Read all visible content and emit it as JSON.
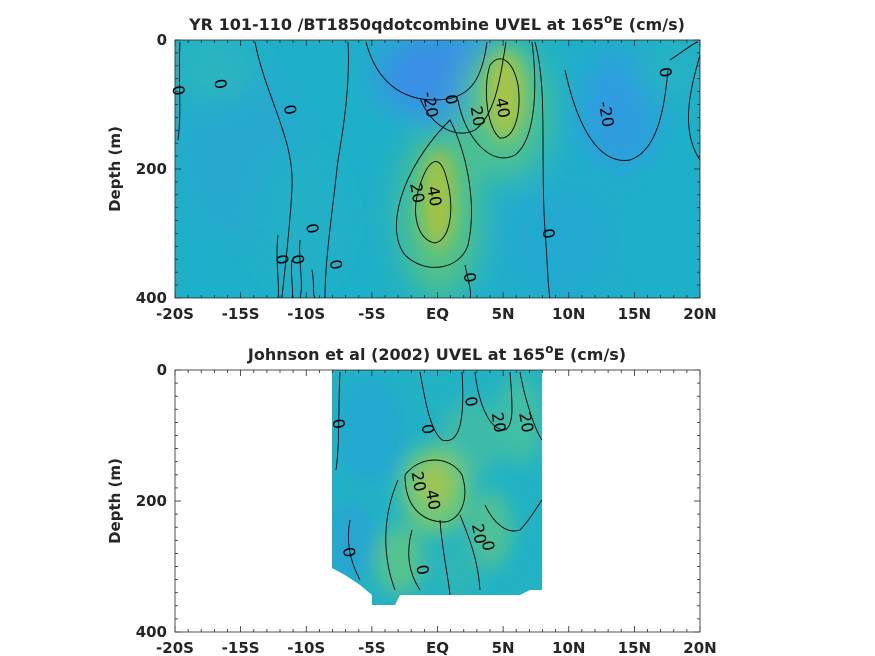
{
  "chart_data": [
    {
      "type": "heatmap",
      "title": "YR 101-110 /BT1850qdotcombine UVEL at 165",
      "title_superscript": "o",
      "title_suffix": "E (cm/s)",
      "xlabel": "",
      "ylabel": "Depth (m)",
      "x_ticks": [
        "-20S",
        "-15S",
        "-10S",
        "-5S",
        "EQ",
        "5N",
        "10N",
        "15N",
        "20N"
      ],
      "x_tick_values": [
        -20,
        -15,
        -10,
        -5,
        0,
        5,
        10,
        15,
        20
      ],
      "y_ticks": [
        "0",
        "200",
        "400"
      ],
      "y_tick_values": [
        0,
        200,
        400
      ],
      "xlim": [
        -20,
        20
      ],
      "ylim": [
        400,
        0
      ],
      "y_reversed": true,
      "data_extent_x": [
        -20,
        20
      ],
      "data_extent_y": [
        0,
        395
      ],
      "colormap": "parula",
      "contour_levels": [
        -20,
        0,
        20,
        40
      ],
      "contour_labels": [
        {
          "text": "0",
          "x": -19.7,
          "y": 78
        },
        {
          "text": "0",
          "x": -16.5,
          "y": 68
        },
        {
          "text": "0",
          "x": -11.2,
          "y": 108
        },
        {
          "text": "-20",
          "x": -0.5,
          "y": 100
        },
        {
          "text": "0",
          "x": 1.1,
          "y": 92
        },
        {
          "text": "20",
          "x": 3.1,
          "y": 118
        },
        {
          "text": "40",
          "x": 5.0,
          "y": 105
        },
        {
          "text": "-20",
          "x": 12.9,
          "y": 115
        },
        {
          "text": "0",
          "x": 17.4,
          "y": 50
        },
        {
          "text": "20",
          "x": -1.5,
          "y": 237
        },
        {
          "text": "40",
          "x": -0.2,
          "y": 242
        },
        {
          "text": "0",
          "x": -9.5,
          "y": 292
        },
        {
          "text": "0",
          "x": -11.8,
          "y": 340
        },
        {
          "text": "0",
          "x": -10.6,
          "y": 340
        },
        {
          "text": "0",
          "x": -7.7,
          "y": 348
        },
        {
          "text": "0",
          "x": 8.5,
          "y": 300
        },
        {
          "text": "0",
          "x": 2.5,
          "y": 368
        }
      ]
    },
    {
      "type": "heatmap",
      "title": "Johnson et al (2002) UVEL at 165",
      "title_superscript": "o",
      "title_suffix": "E (cm/s)",
      "xlabel": "",
      "ylabel": "Depth (m)",
      "x_ticks": [
        "-20S",
        "-15S",
        "-10S",
        "-5S",
        "EQ",
        "5N",
        "10N",
        "15N",
        "20N"
      ],
      "x_tick_values": [
        -20,
        -15,
        -10,
        -5,
        0,
        5,
        10,
        15,
        20
      ],
      "y_ticks": [
        "0",
        "200",
        "400"
      ],
      "y_tick_values": [
        0,
        200,
        400
      ],
      "xlim": [
        -20,
        20
      ],
      "ylim": [
        400,
        0
      ],
      "y_reversed": true,
      "data_extent_x": [
        -8,
        8
      ],
      "data_extent_y": [
        0,
        360
      ],
      "colormap": "parula",
      "contour_levels": [
        0,
        20,
        40
      ],
      "contour_labels": [
        {
          "text": "0",
          "x": -7.5,
          "y": 82
        },
        {
          "text": "0",
          "x": -0.7,
          "y": 90
        },
        {
          "text": "0",
          "x": 2.6,
          "y": 48
        },
        {
          "text": "20",
          "x": 4.7,
          "y": 80
        },
        {
          "text": "20",
          "x": 6.8,
          "y": 80
        },
        {
          "text": "20",
          "x": -1.4,
          "y": 170
        },
        {
          "text": "40",
          "x": -0.3,
          "y": 198
        },
        {
          "text": "20",
          "x": 3.2,
          "y": 250
        },
        {
          "text": "0",
          "x": 3.9,
          "y": 268
        },
        {
          "text": "0",
          "x": -6.7,
          "y": 278
        },
        {
          "text": "0",
          "x": -1.1,
          "y": 305
        }
      ]
    }
  ]
}
